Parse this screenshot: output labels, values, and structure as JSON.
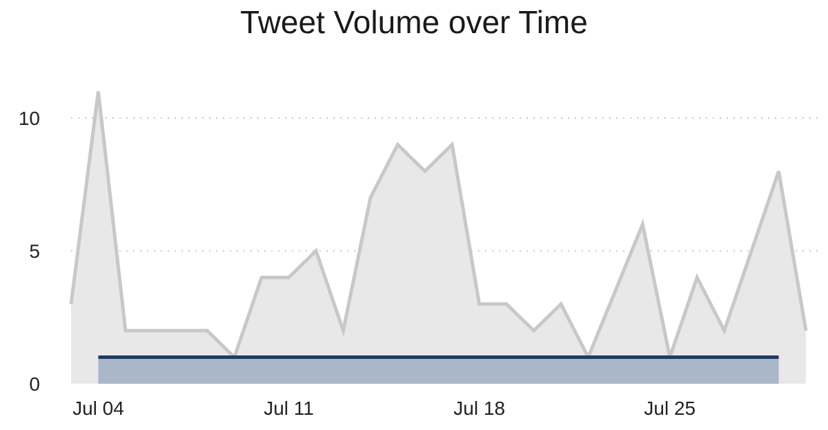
{
  "chart_data": {
    "type": "area",
    "title": "Tweet Volume over Time",
    "xlabel": "",
    "ylabel": "",
    "x": [
      "2019-07-03",
      "2019-07-04",
      "2019-07-05",
      "2019-07-06",
      "2019-07-07",
      "2019-07-08",
      "2019-07-09",
      "2019-07-10",
      "2019-07-11",
      "2019-07-12",
      "2019-07-13",
      "2019-07-14",
      "2019-07-15",
      "2019-07-16",
      "2019-07-17",
      "2019-07-18",
      "2019-07-19",
      "2019-07-20",
      "2019-07-21",
      "2019-07-22",
      "2019-07-23",
      "2019-07-24",
      "2019-07-25",
      "2019-07-26",
      "2019-07-27",
      "2019-07-28",
      "2019-07-29",
      "2019-07-30"
    ],
    "x_tick_labels": [
      "Jul 04",
      "Jul 11",
      "Jul 18",
      "Jul 25"
    ],
    "x_tick_dates": [
      "2019-07-04",
      "2019-07-11",
      "2019-07-18",
      "2019-07-25"
    ],
    "y_ticks": [
      0,
      5,
      10
    ],
    "ylim": [
      0,
      11.5
    ],
    "grid": true,
    "series": [
      {
        "values": [
          3,
          11,
          2,
          2,
          2,
          2,
          1,
          4,
          4,
          5,
          2,
          7,
          9,
          8,
          9,
          3,
          3,
          2,
          3,
          1,
          3.5,
          6,
          1,
          4,
          2,
          5,
          8,
          2
        ],
        "color": "#c8c8c8",
        "fill": "#e8e8e8"
      },
      {
        "start": "2019-07-04",
        "end": "2019-07-29",
        "value": 1,
        "color": "#1f3a63",
        "fill": "#a3b1c4"
      }
    ]
  }
}
